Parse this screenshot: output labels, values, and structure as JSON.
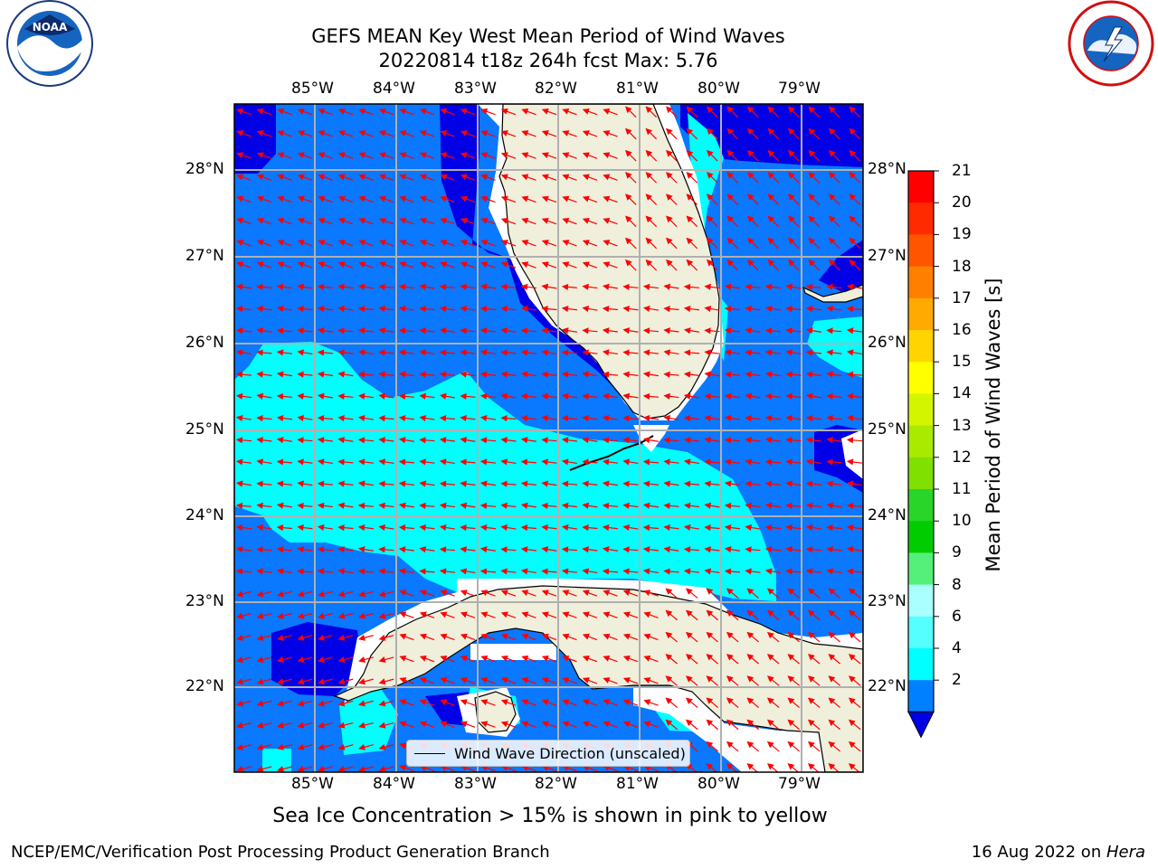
{
  "title": {
    "line1": "GEFS MEAN Key West Mean Period of Wind Waves",
    "line2": "20220814 t18z 264h fcst   Max: 5.76"
  },
  "lon_labels": [
    "85°W",
    "84°W",
    "83°W",
    "82°W",
    "81°W",
    "80°W",
    "79°W"
  ],
  "lat_labels": [
    "28°N",
    "27°N",
    "26°N",
    "25°N",
    "24°N",
    "23°N",
    "22°N"
  ],
  "colorbar": {
    "label": "Mean Period of Wind Waves [s]",
    "ticks": [
      "21",
      "20",
      "19",
      "18",
      "17",
      "16",
      "15",
      "14",
      "13",
      "12",
      "11",
      "10",
      "9",
      "8",
      "6",
      "4",
      "2"
    ],
    "colors": [
      "#ff0000",
      "#ff2a00",
      "#ff5500",
      "#ff8000",
      "#ffaa00",
      "#ffd400",
      "#ffff00",
      "#d4f500",
      "#aaea00",
      "#80e000",
      "#2ad52a",
      "#00cc00",
      "#55f07a",
      "#aaffff",
      "#55ffff",
      "#00ffff",
      "#0080ff"
    ]
  },
  "legend": {
    "label": "Wind Wave Direction (unscaled)"
  },
  "caption": "Sea Ice Concentration > 15% is shown in pink to yellow",
  "footer": {
    "left": "NCEP/EMC/Verification Post Processing Product Generation Branch",
    "right_date": "16 Aug 2022 on ",
    "right_host": "Hera"
  },
  "colors": {
    "dark_blue": "#0000e6",
    "mid_blue": "#0a78ff",
    "cyan": "#00ffff",
    "land": "#efefdc",
    "arrow": "#ff0000",
    "grid": "#b0b0b0"
  }
}
